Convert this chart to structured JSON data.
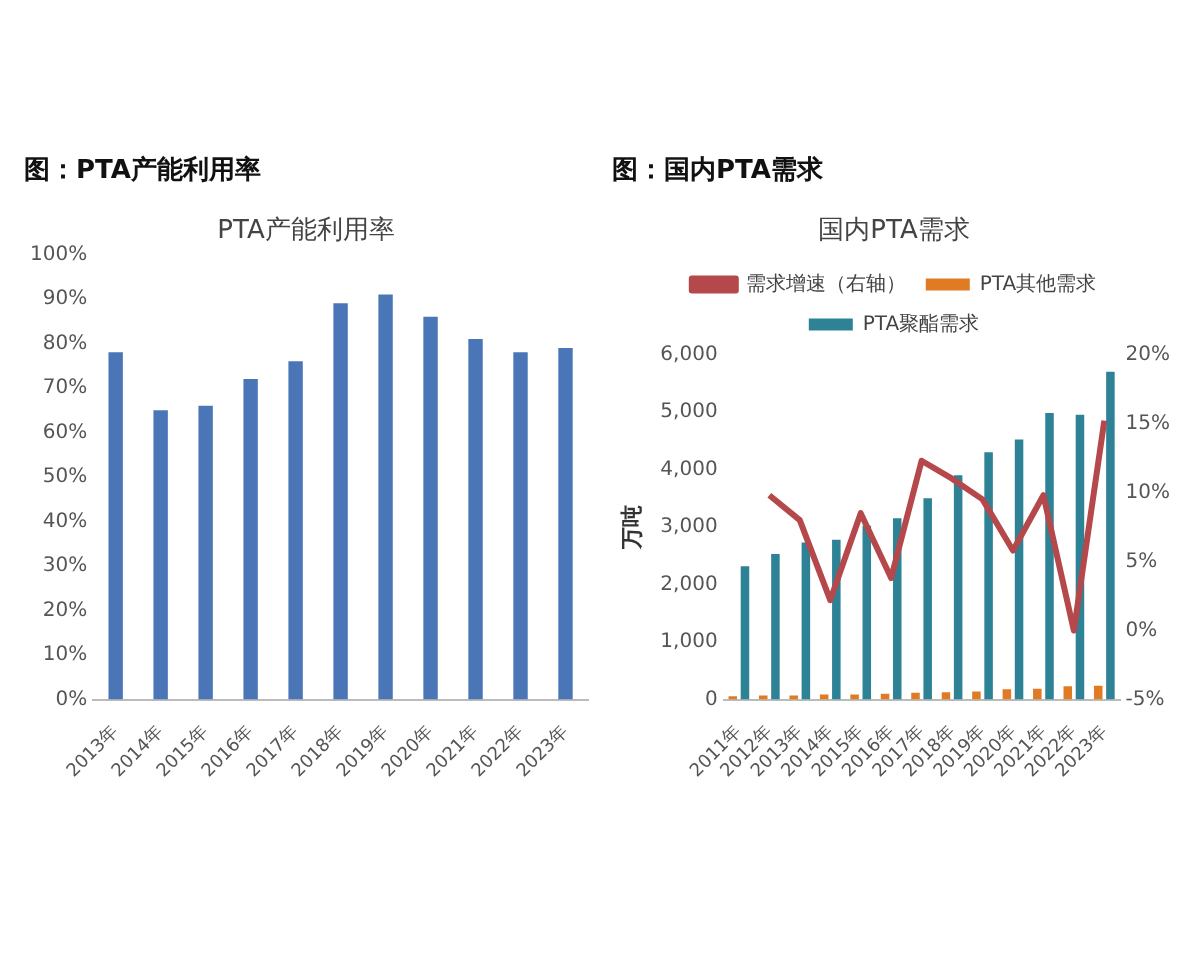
{
  "chart_data": [
    {
      "type": "bar",
      "title": "图：PTA产能利用率",
      "subtitle": "PTA产能利用率",
      "categories": [
        "2013年",
        "2014年",
        "2015年",
        "2016年",
        "2017年",
        "2018年",
        "2019年",
        "2020年",
        "2021年",
        "2022年",
        "2023年"
      ],
      "values": [
        78,
        65,
        66,
        72,
        76,
        89,
        91,
        86,
        81,
        78,
        79
      ],
      "color": "#4a76b8",
      "ylim": [
        0,
        100
      ],
      "yticks": [
        {
          "value": 0,
          "label": "0%"
        },
        {
          "value": 10,
          "label": "10%"
        },
        {
          "value": 20,
          "label": "20%"
        },
        {
          "value": 30,
          "label": "30%"
        },
        {
          "value": 40,
          "label": "40%"
        },
        {
          "value": 50,
          "label": "50%"
        },
        {
          "value": 60,
          "label": "60%"
        },
        {
          "value": 70,
          "label": "70%"
        },
        {
          "value": 80,
          "label": "80%"
        },
        {
          "value": 90,
          "label": "90%"
        },
        {
          "value": 100,
          "label": "100%"
        }
      ],
      "grid": false,
      "legend": false
    },
    {
      "type": "bar",
      "title": "图：国内PTA需求",
      "subtitle": "国内PTA需求",
      "ylabel": "万吨",
      "categories": [
        "2011年",
        "2012年",
        "2013年",
        "2014年",
        "2015年",
        "2016年",
        "2017年",
        "2018年",
        "2019年",
        "2020年",
        "2021年",
        "2022年",
        "2023年"
      ],
      "series": [
        {
          "name": "PTA其他需求",
          "color": "#e07b24",
          "values": [
            60,
            70,
            70,
            90,
            90,
            100,
            120,
            130,
            140,
            180,
            190,
            230,
            240
          ]
        },
        {
          "name": "PTA聚酯需求",
          "color": "#2e8296",
          "values": [
            2320,
            2530,
            2730,
            2780,
            3020,
            3150,
            3500,
            3900,
            4300,
            4520,
            4980,
            4950,
            5700
          ]
        },
        {
          "name": "需求增速（右轴）",
          "type": "line",
          "axis": "y2",
          "color": "#b5484a",
          "values": [
            null,
            9.8,
            8.0,
            2.2,
            8.5,
            3.8,
            12.3,
            11.0,
            9.5,
            5.8,
            9.8,
            0,
            15.2
          ]
        }
      ],
      "ylim": [
        0,
        6000
      ],
      "yticks": [
        0,
        {
          "value": 1000,
          "label": "1,000"
        },
        {
          "value": 2000,
          "label": "2,000"
        },
        {
          "value": 3000,
          "label": "3,000"
        },
        {
          "value": 4000,
          "label": "4,000"
        },
        {
          "value": 5000,
          "label": "5,000"
        },
        {
          "value": 6000,
          "label": "6,000"
        }
      ],
      "y2lim": [
        -5,
        20
      ],
      "y2ticks": [
        {
          "value": -5,
          "label": "-5%"
        },
        {
          "value": 0,
          "label": "0%"
        },
        {
          "value": 5,
          "label": "5%"
        },
        {
          "value": 10,
          "label": "10%"
        },
        {
          "value": 15,
          "label": "15%"
        },
        {
          "value": 20,
          "label": "20%"
        }
      ],
      "grid": false,
      "legend": "top",
      "marker": "none",
      "line_style": "solid"
    }
  ]
}
